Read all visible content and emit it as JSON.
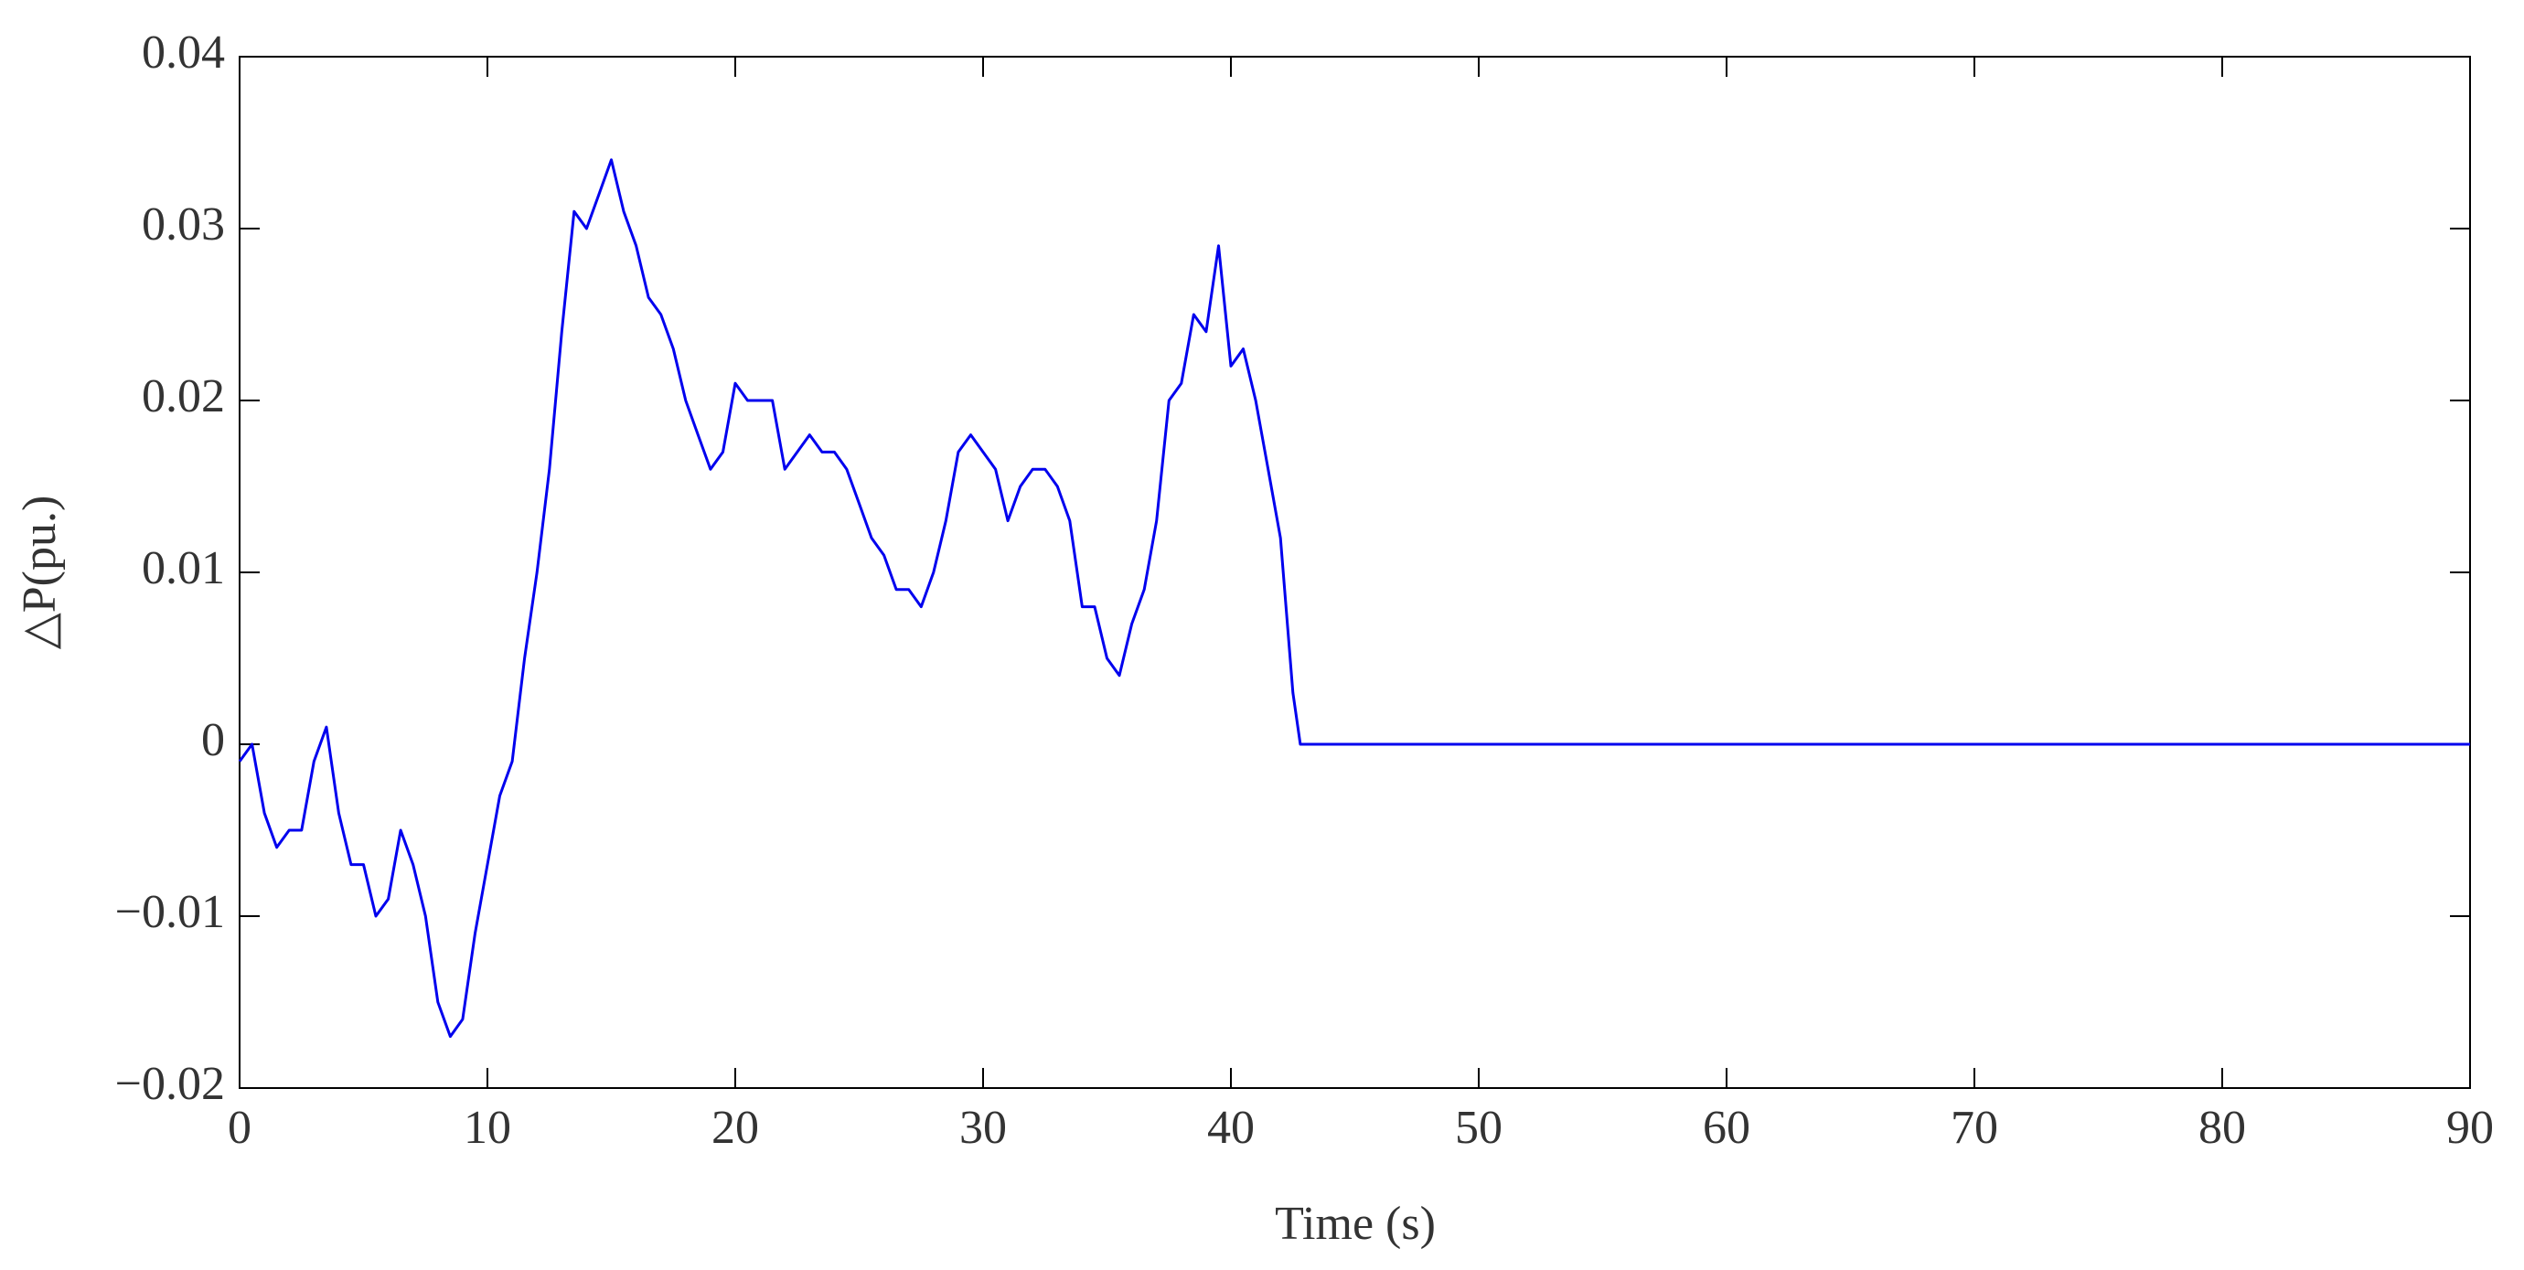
{
  "chart_data": {
    "type": "line",
    "x_label": "Time (s)",
    "y_label": "△P(pu.)",
    "xlim": [
      0,
      90
    ],
    "xticks": [
      0,
      10,
      20,
      30,
      40,
      50,
      60,
      70,
      80,
      90
    ],
    "ylim": [
      -0.02,
      0.04
    ],
    "yticks": [
      {
        "value": -0.02,
        "label": "−0.02"
      },
      {
        "value": -0.01,
        "label": "−0.01"
      },
      0,
      0.01,
      0.02,
      0.03,
      0.04
    ],
    "grid": false,
    "series": [
      {
        "color": "#0000ee",
        "x": [
          0,
          0.5,
          1,
          1.5,
          2,
          2.5,
          3,
          3.5,
          4,
          4.5,
          5,
          5.5,
          6,
          6.5,
          7,
          7.5,
          8,
          8.5,
          9,
          9.5,
          10,
          10.5,
          11,
          11.5,
          12,
          12.5,
          13,
          13.5,
          14,
          14.5,
          15,
          15.5,
          16,
          16.5,
          17,
          17.5,
          18,
          18.5,
          19,
          19.5,
          20,
          20.5,
          21,
          21.5,
          22,
          22.5,
          23,
          23.5,
          24,
          24.5,
          25,
          25.5,
          26,
          26.5,
          27,
          27.5,
          28,
          28.5,
          29,
          29.5,
          30,
          30.5,
          31,
          31.5,
          32,
          32.5,
          33,
          33.5,
          34,
          34.5,
          35,
          35.5,
          36,
          36.5,
          37,
          37.5,
          38,
          38.5,
          39,
          39.5,
          40,
          40.5,
          41,
          41.5,
          42,
          42.5,
          42.8,
          90
        ],
        "values": [
          -0.001,
          0.0,
          -0.004,
          -0.006,
          -0.005,
          -0.005,
          -0.001,
          0.001,
          -0.004,
          -0.007,
          -0.007,
          -0.01,
          -0.009,
          -0.005,
          -0.007,
          -0.01,
          -0.015,
          -0.017,
          -0.016,
          -0.011,
          -0.007,
          -0.003,
          -0.001,
          0.005,
          0.01,
          0.016,
          0.024,
          0.031,
          0.03,
          0.032,
          0.034,
          0.031,
          0.029,
          0.026,
          0.025,
          0.023,
          0.02,
          0.018,
          0.016,
          0.017,
          0.021,
          0.02,
          0.02,
          0.02,
          0.016,
          0.017,
          0.018,
          0.017,
          0.017,
          0.016,
          0.014,
          0.012,
          0.011,
          0.009,
          0.009,
          0.008,
          0.01,
          0.013,
          0.017,
          0.018,
          0.017,
          0.016,
          0.013,
          0.015,
          0.016,
          0.016,
          0.015,
          0.013,
          0.008,
          0.008,
          0.005,
          0.004,
          0.007,
          0.009,
          0.013,
          0.02,
          0.021,
          0.025,
          0.024,
          0.029,
          0.022,
          0.023,
          0.02,
          0.016,
          0.012,
          0.003,
          0.0,
          0.0
        ]
      }
    ]
  }
}
